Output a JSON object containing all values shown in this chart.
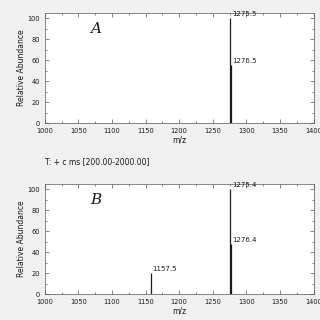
{
  "panel_A": {
    "label": "A",
    "header": "T: + c ms [200.00-2000.00]",
    "peaks": [
      {
        "mz": 1275.5,
        "intensity": 100.0,
        "label": "1275.5"
      },
      {
        "mz": 1276.5,
        "intensity": 55.0,
        "label": "1276.5"
      }
    ],
    "xlim": [
      1000,
      1400
    ],
    "ylim": [
      0,
      105
    ],
    "xticks": [
      1000,
      1050,
      1100,
      1150,
      1200,
      1250,
      1300,
      1350,
      1400
    ],
    "yticks": [
      0,
      20,
      40,
      60,
      80,
      100
    ],
    "xlabel": "m/z",
    "ylabel": "Relative Abundance"
  },
  "panel_B": {
    "label": "B",
    "header": "T: + c ms [200.00-2000.00]",
    "peaks": [
      {
        "mz": 1157.5,
        "intensity": 20.0,
        "label": "1157.5"
      },
      {
        "mz": 1275.4,
        "intensity": 100.0,
        "label": "1275.4"
      },
      {
        "mz": 1276.4,
        "intensity": 48.0,
        "label": "1276.4"
      }
    ],
    "xlim": [
      1000,
      1400
    ],
    "ylim": [
      0,
      105
    ],
    "xticks": [
      1000,
      1050,
      1100,
      1150,
      1200,
      1250,
      1300,
      1350,
      1400
    ],
    "yticks": [
      0,
      20,
      40,
      60,
      80,
      100
    ],
    "xlabel": "m/z",
    "ylabel": "Relative Abundance"
  },
  "line_color": "#1a1a1a",
  "bg_color": "#f0f0f0",
  "plot_bg_color": "#ffffff",
  "font_color": "#1a1a1a",
  "header_fontsize": 5.5,
  "label_fontsize": 5.5,
  "tick_fontsize": 4.8,
  "peak_label_fontsize": 5.0,
  "panel_label_fontsize": 11,
  "line_width": 0.9
}
